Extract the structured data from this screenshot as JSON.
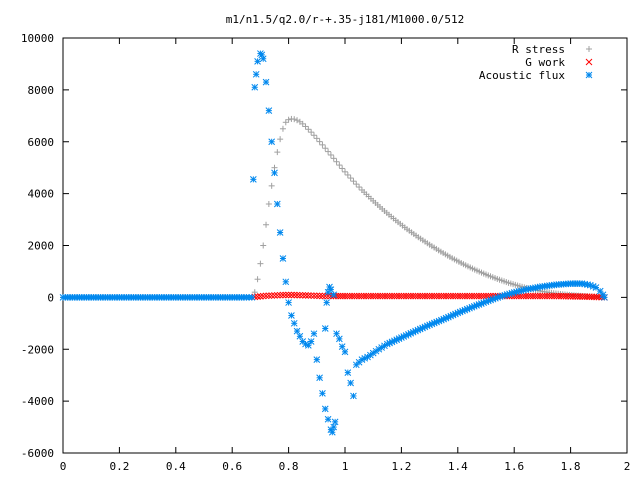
{
  "chart_data": {
    "type": "scatter",
    "title": "m1/n1.5/q2.0/r-+.35-j181/M1000.0/512",
    "xlim": [
      0,
      2
    ],
    "ylim": [
      -6000,
      10000
    ],
    "x_ticks": [
      "0",
      "0.2",
      "0.4",
      "0.6",
      "0.8",
      "1",
      "1.2",
      "1.4",
      "1.6",
      "1.8",
      "2"
    ],
    "y_ticks": [
      "10000",
      "8000",
      "6000",
      "4000",
      "2000",
      "0",
      "-2000",
      "-4000",
      "-6000"
    ],
    "legend_position": "top-right",
    "colors": {
      "R stress": "#a0a0a0",
      "G work": "#ff0000",
      "Acoustic flux": "#0088ee"
    },
    "series": [
      {
        "name": "R stress",
        "marker": "plus",
        "points": [
          [
            0.0,
            0
          ],
          [
            0.05,
            0
          ],
          [
            0.1,
            0
          ],
          [
            0.15,
            0
          ],
          [
            0.2,
            0
          ],
          [
            0.25,
            0
          ],
          [
            0.3,
            0
          ],
          [
            0.35,
            0
          ],
          [
            0.4,
            0
          ],
          [
            0.45,
            0
          ],
          [
            0.5,
            0
          ],
          [
            0.55,
            0
          ],
          [
            0.6,
            0
          ],
          [
            0.65,
            0
          ],
          [
            0.67,
            0
          ],
          [
            0.68,
            200
          ],
          [
            0.69,
            700
          ],
          [
            0.7,
            1300
          ],
          [
            0.71,
            2000
          ],
          [
            0.72,
            2800
          ],
          [
            0.73,
            3600
          ],
          [
            0.74,
            4300
          ],
          [
            0.75,
            5000
          ],
          [
            0.76,
            5600
          ],
          [
            0.77,
            6100
          ],
          [
            0.78,
            6500
          ],
          [
            0.79,
            6750
          ],
          [
            0.8,
            6850
          ],
          [
            0.81,
            6880
          ],
          [
            0.82,
            6870
          ],
          [
            0.83,
            6830
          ],
          [
            0.84,
            6770
          ],
          [
            0.85,
            6690
          ],
          [
            0.86,
            6590
          ],
          [
            0.88,
            6370
          ],
          [
            0.9,
            6130
          ],
          [
            0.92,
            5880
          ],
          [
            0.94,
            5620
          ],
          [
            0.96,
            5360
          ],
          [
            0.98,
            5100
          ],
          [
            1.0,
            4840
          ],
          [
            1.03,
            4480
          ],
          [
            1.06,
            4140
          ],
          [
            1.1,
            3720
          ],
          [
            1.14,
            3330
          ],
          [
            1.18,
            2970
          ],
          [
            1.22,
            2630
          ],
          [
            1.26,
            2320
          ],
          [
            1.3,
            2030
          ],
          [
            1.34,
            1760
          ],
          [
            1.38,
            1510
          ],
          [
            1.42,
            1280
          ],
          [
            1.46,
            1070
          ],
          [
            1.5,
            880
          ],
          [
            1.54,
            710
          ],
          [
            1.58,
            560
          ],
          [
            1.62,
            430
          ],
          [
            1.66,
            320
          ],
          [
            1.7,
            230
          ],
          [
            1.74,
            160
          ],
          [
            1.78,
            110
          ],
          [
            1.82,
            70
          ],
          [
            1.86,
            40
          ],
          [
            1.9,
            20
          ],
          [
            1.92,
            0
          ]
        ]
      },
      {
        "name": "G work",
        "marker": "x",
        "points": [
          [
            0.68,
            20
          ],
          [
            0.7,
            40
          ],
          [
            0.72,
            60
          ],
          [
            0.74,
            70
          ],
          [
            0.76,
            80
          ],
          [
            0.78,
            90
          ],
          [
            0.8,
            90
          ],
          [
            0.82,
            90
          ],
          [
            0.85,
            80
          ],
          [
            0.88,
            70
          ],
          [
            0.9,
            60
          ],
          [
            0.93,
            50
          ],
          [
            0.96,
            50
          ],
          [
            1.0,
            50
          ],
          [
            1.05,
            50
          ],
          [
            1.1,
            50
          ],
          [
            1.15,
            50
          ],
          [
            1.2,
            50
          ],
          [
            1.25,
            50
          ],
          [
            1.3,
            50
          ],
          [
            1.35,
            50
          ],
          [
            1.4,
            50
          ],
          [
            1.45,
            50
          ],
          [
            1.5,
            50
          ],
          [
            1.55,
            50
          ],
          [
            1.6,
            50
          ],
          [
            1.65,
            50
          ],
          [
            1.7,
            50
          ],
          [
            1.75,
            50
          ],
          [
            1.8,
            40
          ],
          [
            1.85,
            30
          ],
          [
            1.9,
            10
          ],
          [
            1.92,
            0
          ]
        ]
      },
      {
        "name": "Acoustic flux",
        "marker": "star",
        "points": [
          [
            0.0,
            0
          ],
          [
            0.05,
            0
          ],
          [
            0.1,
            0
          ],
          [
            0.15,
            0
          ],
          [
            0.2,
            0
          ],
          [
            0.25,
            0
          ],
          [
            0.3,
            0
          ],
          [
            0.35,
            0
          ],
          [
            0.4,
            0
          ],
          [
            0.45,
            0
          ],
          [
            0.5,
            0
          ],
          [
            0.55,
            0
          ],
          [
            0.6,
            0
          ],
          [
            0.65,
            0
          ],
          [
            0.67,
            0
          ],
          [
            0.675,
            4550
          ],
          [
            0.68,
            8100
          ],
          [
            0.685,
            8600
          ],
          [
            0.69,
            9100
          ],
          [
            0.7,
            9400
          ],
          [
            0.705,
            9350
          ],
          [
            0.71,
            9200
          ],
          [
            0.72,
            8300
          ],
          [
            0.73,
            7200
          ],
          [
            0.74,
            6000
          ],
          [
            0.75,
            4800
          ],
          [
            0.76,
            3600
          ],
          [
            0.77,
            2500
          ],
          [
            0.78,
            1500
          ],
          [
            0.79,
            600
          ],
          [
            0.8,
            -200
          ],
          [
            0.81,
            -700
          ],
          [
            0.82,
            -1000
          ],
          [
            0.83,
            -1300
          ],
          [
            0.84,
            -1500
          ],
          [
            0.85,
            -1700
          ],
          [
            0.86,
            -1800
          ],
          [
            0.87,
            -1850
          ],
          [
            0.88,
            -1700
          ],
          [
            0.89,
            -1400
          ],
          [
            0.9,
            -2400
          ],
          [
            0.91,
            -3100
          ],
          [
            0.92,
            -3700
          ],
          [
            0.93,
            -4300
          ],
          [
            0.94,
            -4700
          ],
          [
            0.95,
            -5100
          ],
          [
            0.955,
            -5200
          ],
          [
            0.96,
            -5000
          ],
          [
            0.965,
            -4800
          ],
          [
            0.93,
            -1200
          ],
          [
            0.935,
            -200
          ],
          [
            0.94,
            200
          ],
          [
            0.945,
            400
          ],
          [
            0.95,
            300
          ],
          [
            0.96,
            100
          ],
          [
            0.97,
            -1400
          ],
          [
            0.98,
            -1600
          ],
          [
            0.99,
            -1900
          ],
          [
            1.0,
            -2100
          ],
          [
            1.01,
            -2900
          ],
          [
            1.02,
            -3300
          ],
          [
            1.03,
            -3800
          ],
          [
            1.04,
            -2600
          ],
          [
            1.05,
            -2500
          ],
          [
            1.06,
            -2400
          ],
          [
            1.08,
            -2300
          ],
          [
            1.1,
            -2150
          ],
          [
            1.12,
            -2000
          ],
          [
            1.15,
            -1800
          ],
          [
            1.2,
            -1550
          ],
          [
            1.25,
            -1300
          ],
          [
            1.3,
            -1060
          ],
          [
            1.35,
            -840
          ],
          [
            1.4,
            -600
          ],
          [
            1.45,
            -380
          ],
          [
            1.5,
            -170
          ],
          [
            1.55,
            30
          ],
          [
            1.6,
            190
          ],
          [
            1.65,
            320
          ],
          [
            1.7,
            420
          ],
          [
            1.75,
            490
          ],
          [
            1.8,
            530
          ],
          [
            1.84,
            530
          ],
          [
            1.87,
            470
          ],
          [
            1.89,
            380
          ],
          [
            1.905,
            240
          ],
          [
            1.915,
            100
          ],
          [
            1.92,
            0
          ]
        ]
      }
    ]
  }
}
